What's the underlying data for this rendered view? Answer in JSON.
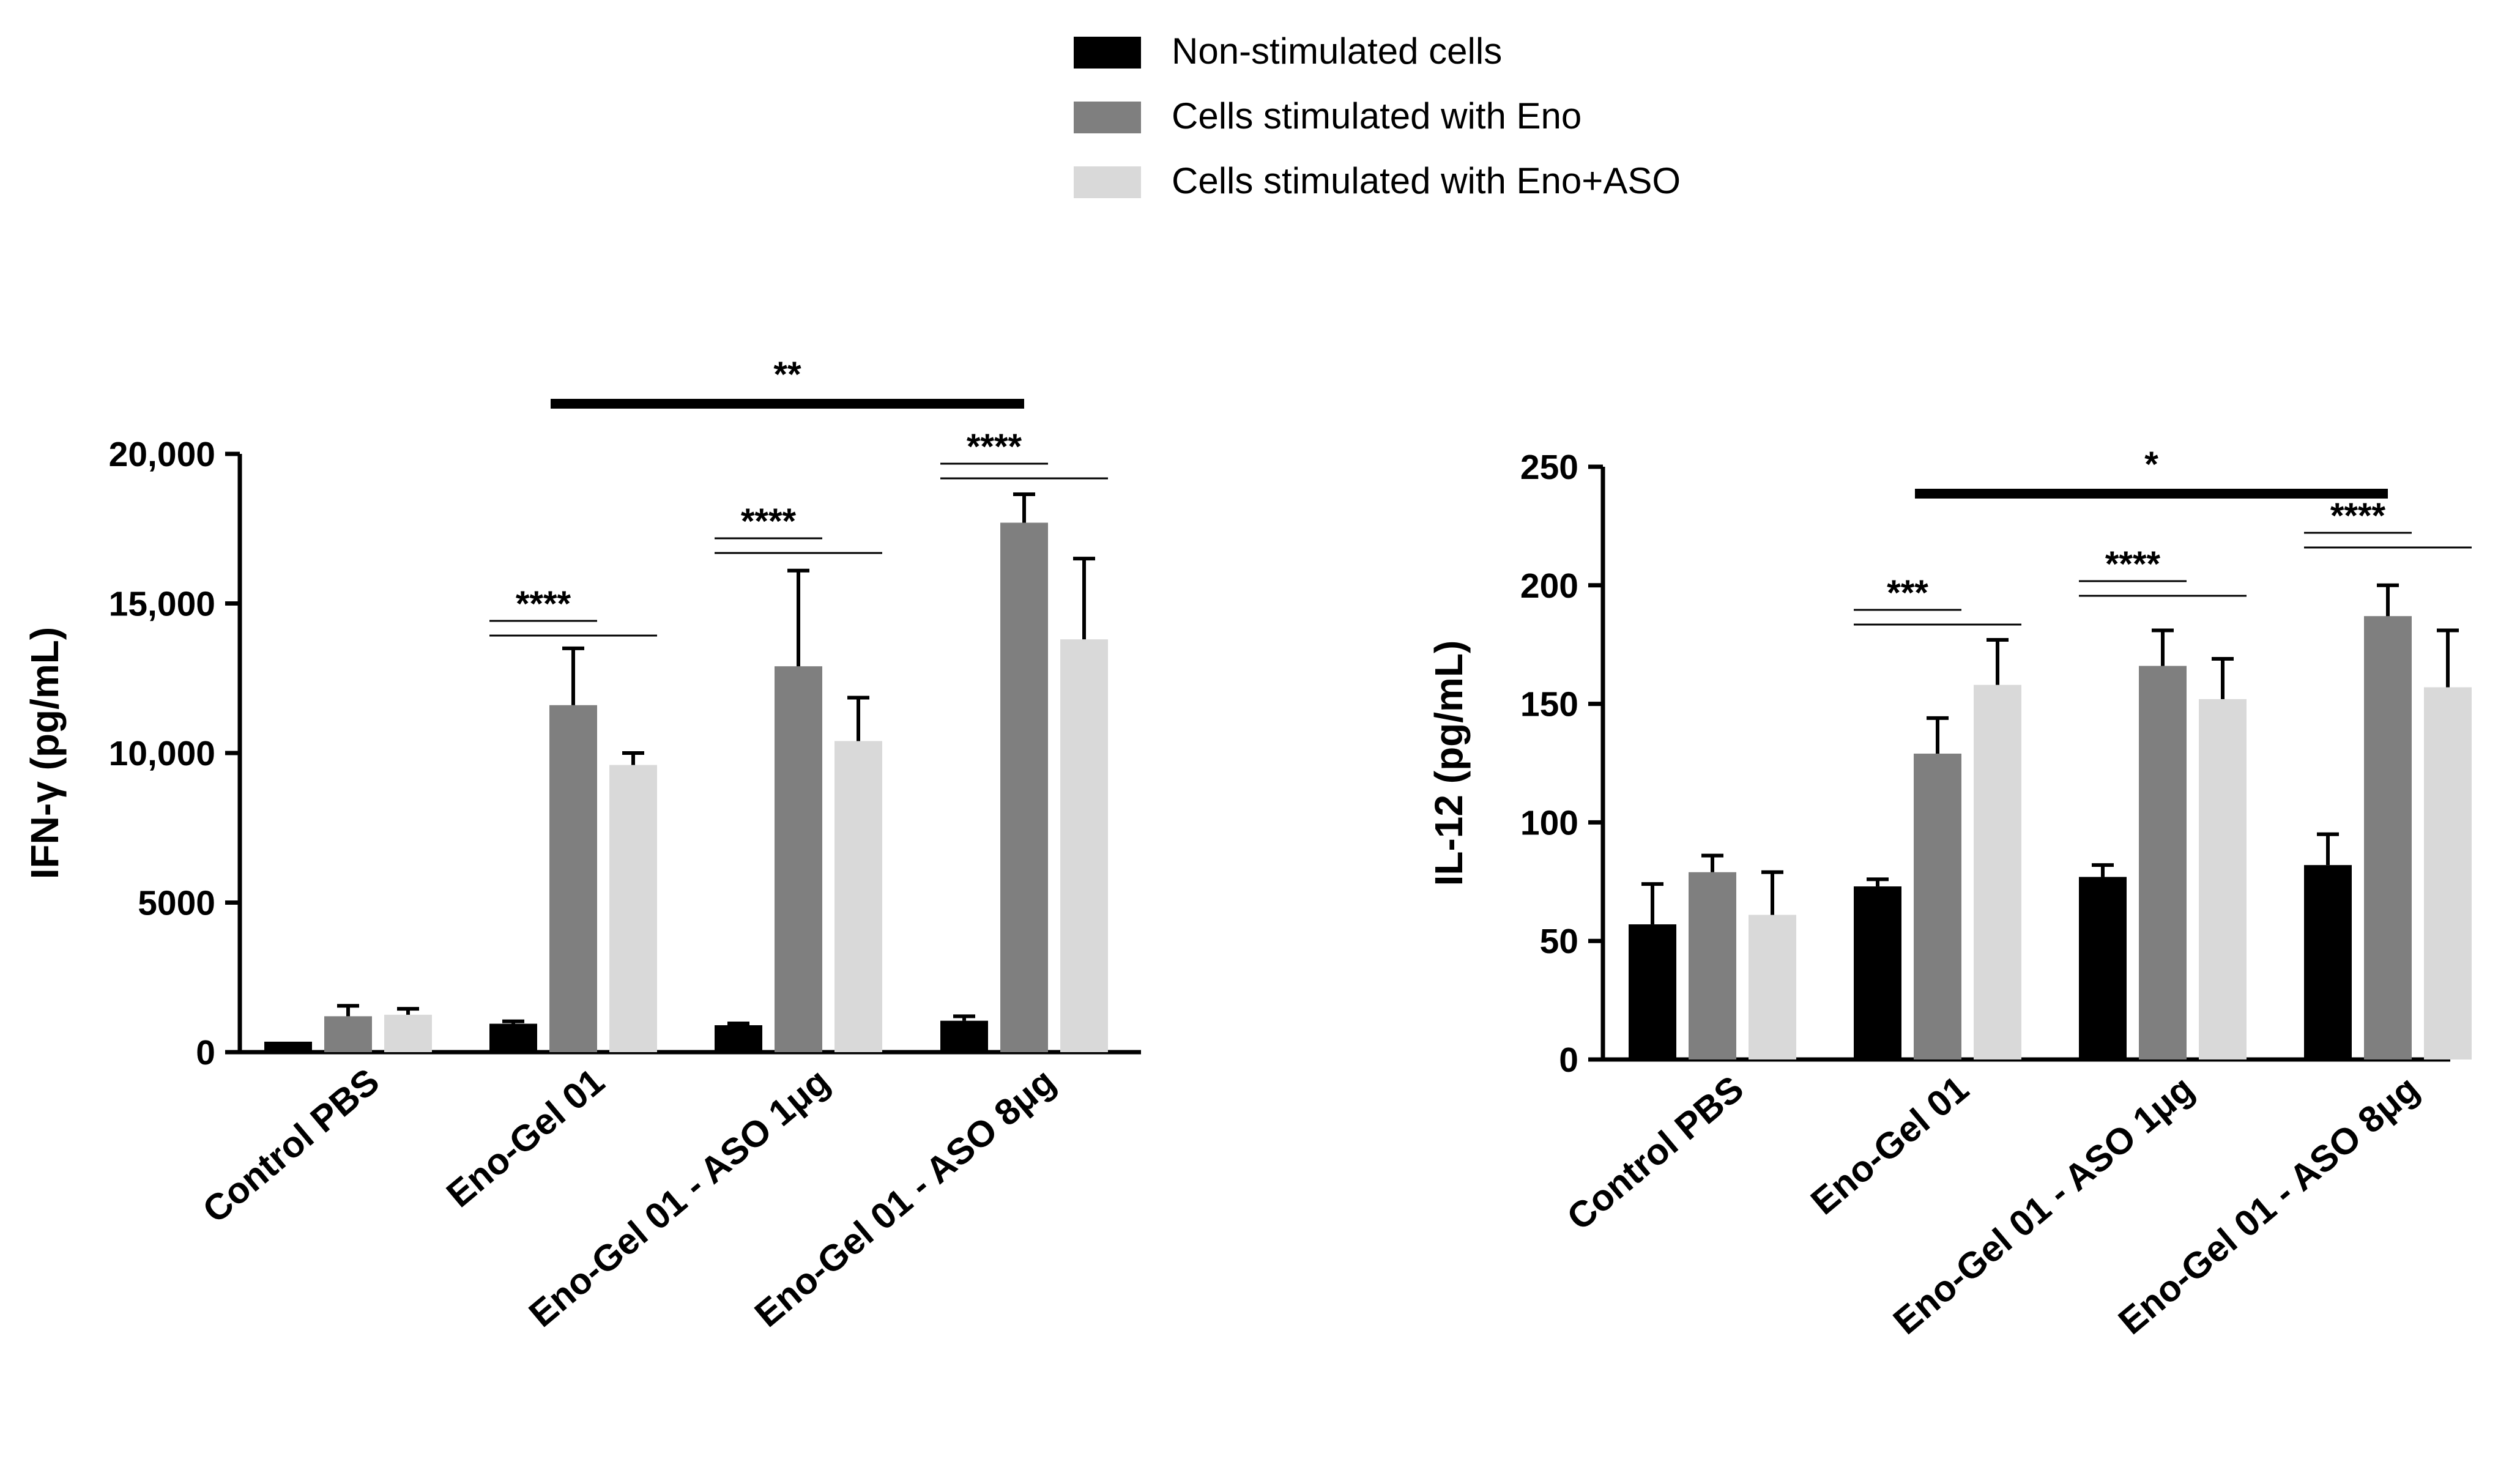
{
  "legend": {
    "entries": [
      {
        "label": "Non-stimulated cells",
        "color": "#000000"
      },
      {
        "label": "Cells stimulated with Eno",
        "color": "#7f7f7f"
      },
      {
        "label": "Cells stimulated with Eno+ASO",
        "color": "#d9d9d9"
      }
    ]
  },
  "chart_data": [
    {
      "type": "bar",
      "title": "",
      "xlabel": "",
      "ylabel": "IFN-γ (pg/mL)",
      "ylim": [
        0,
        20000
      ],
      "yticks": [
        0,
        5000,
        10000,
        15000,
        20000
      ],
      "ytick_labels": [
        "0",
        "5000",
        "10,000",
        "15,000",
        "20,000"
      ],
      "categories": [
        "Control PBS",
        "Eno-Gel 01",
        "Eno-Gel 01 - ASO 1μg",
        "Eno-Gel 01 - ASO 8μg"
      ],
      "series": [
        {
          "name": "Non-stimulated cells",
          "color": "#000000",
          "values": [
            350,
            950,
            900,
            1050
          ],
          "errors": [
            0,
            80,
            60,
            150
          ]
        },
        {
          "name": "Cells stimulated with Eno",
          "color": "#7f7f7f",
          "values": [
            1200,
            11600,
            12900,
            17700
          ],
          "errors": [
            350,
            1900,
            3200,
            950
          ]
        },
        {
          "name": "Cells stimulated with Eno+ASO",
          "color": "#d9d9d9",
          "values": [
            1250,
            9600,
            10400,
            13800
          ],
          "errors": [
            200,
            400,
            1450,
            2700
          ]
        }
      ],
      "annotations": [
        {
          "label": "****",
          "group": 1
        },
        {
          "label": "****",
          "group": 2
        },
        {
          "label": "****",
          "group": 3
        },
        {
          "label": "**",
          "from_group": 1,
          "to_group": 3
        }
      ]
    },
    {
      "type": "bar",
      "title": "",
      "xlabel": "",
      "ylabel": "IL-12 (pg/mL)",
      "ylim": [
        0,
        250
      ],
      "yticks": [
        0,
        50,
        100,
        150,
        200,
        250
      ],
      "ytick_labels": [
        "0",
        "50",
        "100",
        "150",
        "200",
        "250"
      ],
      "categories": [
        "Control PBS",
        "Eno-Gel 01",
        "Eno-Gel 01 - ASO 1μg",
        "Eno-Gel 01 - ASO 8μg"
      ],
      "series": [
        {
          "name": "Non-stimulated cells",
          "color": "#000000",
          "values": [
            57,
            73,
            77,
            82
          ],
          "errors": [
            17,
            3,
            5,
            13
          ]
        },
        {
          "name": "Cells stimulated with Eno",
          "color": "#7f7f7f",
          "values": [
            79,
            129,
            166,
            187
          ],
          "errors": [
            7,
            15,
            15,
            13
          ]
        },
        {
          "name": "Cells stimulated with Eno+ASO",
          "color": "#d9d9d9",
          "values": [
            61,
            158,
            152,
            157
          ],
          "errors": [
            18,
            19,
            17,
            24
          ]
        }
      ],
      "annotations": [
        {
          "label": "***",
          "group": 1
        },
        {
          "label": "****",
          "group": 2
        },
        {
          "label": "****",
          "group": 3
        },
        {
          "label": "*",
          "from_group": 1,
          "to_group": 3
        }
      ]
    }
  ]
}
